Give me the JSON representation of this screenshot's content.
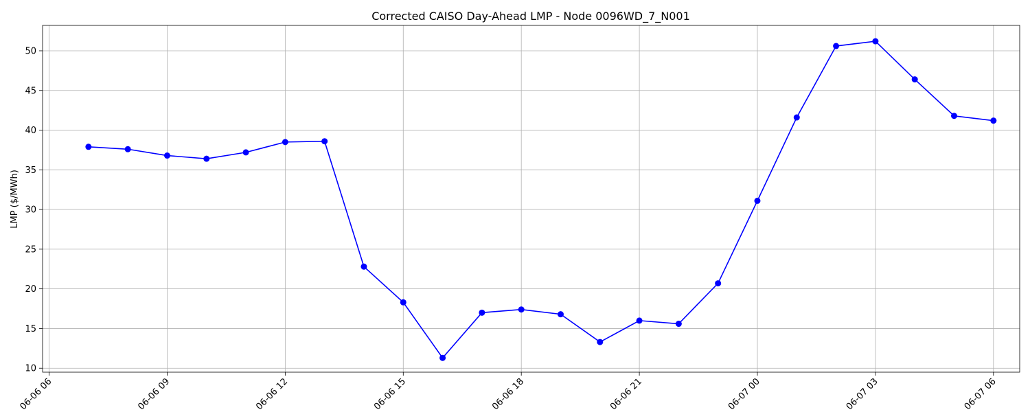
{
  "chart_data": {
    "type": "line",
    "title": "Corrected CAISO Day-Ahead LMP - Node 0096WD_7_N001",
    "xlabel": "",
    "ylabel": "LMP ($/MWh)",
    "grid": true,
    "ylim": [
      9.5,
      53.2
    ],
    "y_ticks": [
      10,
      15,
      20,
      25,
      30,
      35,
      40,
      45,
      50
    ],
    "xlim": [
      "2024-06-06T05:50",
      "2024-06-07T06:40"
    ],
    "x_ticks": [
      {
        "t": "2024-06-06T06:00",
        "label": "06-06 06"
      },
      {
        "t": "2024-06-06T09:00",
        "label": "06-06 09"
      },
      {
        "t": "2024-06-06T12:00",
        "label": "06-06 12"
      },
      {
        "t": "2024-06-06T15:00",
        "label": "06-06 15"
      },
      {
        "t": "2024-06-06T18:00",
        "label": "06-06 18"
      },
      {
        "t": "2024-06-06T21:00",
        "label": "06-06 21"
      },
      {
        "t": "2024-06-07T00:00",
        "label": "06-07 00"
      },
      {
        "t": "2024-06-07T03:00",
        "label": "06-07 03"
      },
      {
        "t": "2024-06-07T06:00",
        "label": "06-07 06"
      }
    ],
    "series": [
      {
        "color": "#0000ff",
        "marker": "circle",
        "points": [
          {
            "t": "2024-06-06T07:00",
            "y": 37.9
          },
          {
            "t": "2024-06-06T08:00",
            "y": 37.6
          },
          {
            "t": "2024-06-06T09:00",
            "y": 36.8
          },
          {
            "t": "2024-06-06T10:00",
            "y": 36.4
          },
          {
            "t": "2024-06-06T11:00",
            "y": 37.2
          },
          {
            "t": "2024-06-06T12:00",
            "y": 38.5
          },
          {
            "t": "2024-06-06T13:00",
            "y": 38.6
          },
          {
            "t": "2024-06-06T14:00",
            "y": 22.8
          },
          {
            "t": "2024-06-06T15:00",
            "y": 18.3
          },
          {
            "t": "2024-06-06T16:00",
            "y": 11.3
          },
          {
            "t": "2024-06-06T17:00",
            "y": 17.0
          },
          {
            "t": "2024-06-06T18:00",
            "y": 17.4
          },
          {
            "t": "2024-06-06T19:00",
            "y": 16.8
          },
          {
            "t": "2024-06-06T20:00",
            "y": 13.3
          },
          {
            "t": "2024-06-06T21:00",
            "y": 16.0
          },
          {
            "t": "2024-06-06T22:00",
            "y": 15.6
          },
          {
            "t": "2024-06-06T23:00",
            "y": 20.7
          },
          {
            "t": "2024-06-07T00:00",
            "y": 31.1
          },
          {
            "t": "2024-06-07T01:00",
            "y": 41.6
          },
          {
            "t": "2024-06-07T02:00",
            "y": 50.6
          },
          {
            "t": "2024-06-07T03:00",
            "y": 51.2
          },
          {
            "t": "2024-06-07T04:00",
            "y": 46.4
          },
          {
            "t": "2024-06-07T05:00",
            "y": 41.8
          },
          {
            "t": "2024-06-07T06:00",
            "y": 41.2
          }
        ]
      }
    ]
  }
}
